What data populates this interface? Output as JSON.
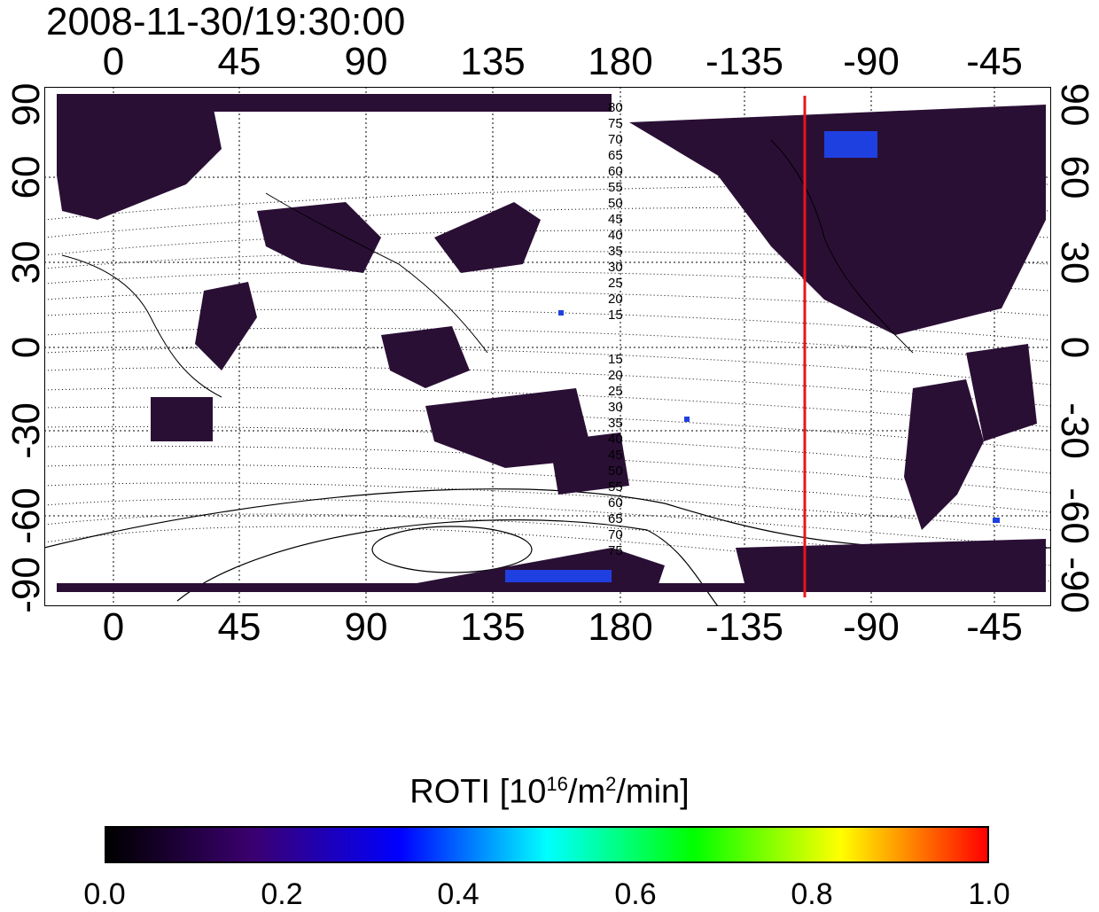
{
  "title": "2008-11-30/19:30:00",
  "map": {
    "lon_ticks": [
      "0",
      "45",
      "90",
      "135",
      "180",
      "-135",
      "-90",
      "-45"
    ],
    "lat_ticks": [
      "90",
      "60",
      "30",
      "0",
      "-30",
      "-60",
      "-90"
    ],
    "contour_labels_north": [
      "80",
      "75",
      "70",
      "65",
      "60",
      "55",
      "50",
      "45",
      "40",
      "35",
      "30",
      "25",
      "20",
      "15"
    ],
    "contour_labels_south": [
      "15",
      "20",
      "25",
      "30",
      "35",
      "40",
      "45",
      "50",
      "55",
      "60",
      "65",
      "70",
      "75"
    ],
    "terminator_longitude": -117,
    "terminator_color": "#e8141b",
    "data_color": "#2a0f35",
    "land_color": "#000000"
  },
  "colorbar": {
    "title": "ROTI  [10",
    "title_sup1": "16",
    "title_mid": "/m",
    "title_sup2": "2",
    "title_end": "/min]",
    "ticks": [
      "0.0",
      "0.2",
      "0.4",
      "0.6",
      "0.8",
      "1.0"
    ],
    "range": [
      0.0,
      1.0
    ],
    "colors": [
      "#000000",
      "#3b0070",
      "#0000ff",
      "#00ffff",
      "#00ff00",
      "#ffff00",
      "#ff0000"
    ]
  }
}
